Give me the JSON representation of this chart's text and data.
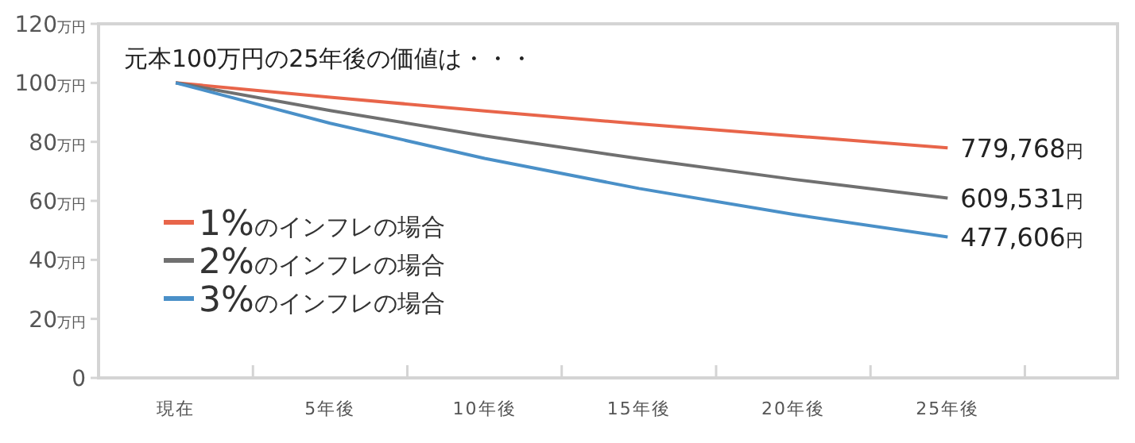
{
  "chart_data": {
    "type": "line",
    "title": "元本100万円の25年後の価値は・・・",
    "categories": [
      "現在",
      "5年後",
      "10年後",
      "15年後",
      "20年後",
      "25年後"
    ],
    "series": [
      {
        "name": "1%のインフレの場合",
        "color": "#e8654a",
        "values": [
          100,
          95.1,
          90.5,
          86.1,
          82.0,
          77.98
        ]
      },
      {
        "name": "2%のインフレの場合",
        "color": "#707070",
        "values": [
          100,
          90.6,
          82.0,
          74.3,
          67.3,
          60.95
        ]
      },
      {
        "name": "3%のインフレの場合",
        "color": "#4a90c8",
        "values": [
          100,
          86.3,
          74.4,
          64.2,
          55.4,
          47.76
        ]
      }
    ],
    "annotations": [
      {
        "text": "779,768円",
        "x": "25年後",
        "y": 77.98
      },
      {
        "text": "609,531円",
        "x": "25年後",
        "y": 60.95
      },
      {
        "text": "477,606円",
        "x": "25年後",
        "y": 47.76
      }
    ],
    "ylim": [
      0,
      120
    ],
    "yticks": [
      0,
      {
        "value": 20,
        "label": "20万円"
      },
      {
        "value": 40,
        "label": "40万円"
      },
      {
        "value": 60,
        "label": "60万円"
      },
      {
        "value": 80,
        "label": "80万円"
      },
      {
        "value": 100,
        "label": "100万円"
      },
      {
        "value": 120,
        "label": "120万円"
      }
    ],
    "legend": "left",
    "grid": false,
    "marker": "none",
    "line_style": "solid"
  }
}
